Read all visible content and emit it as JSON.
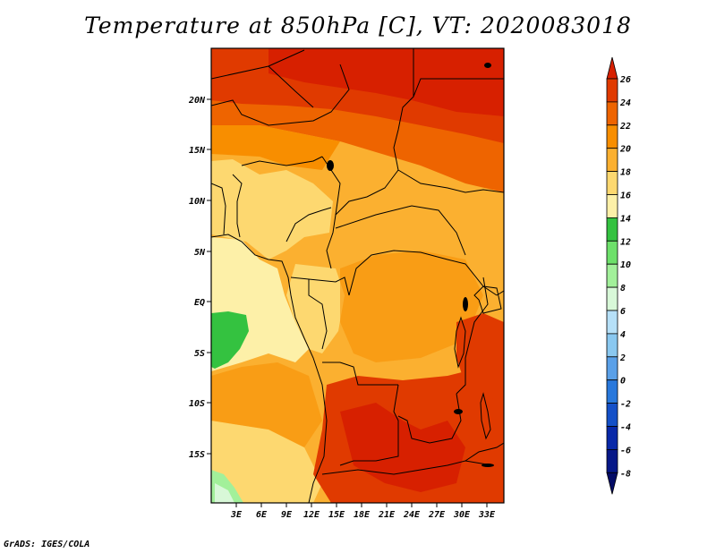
{
  "title": "Temperature at 850hPa [C], VT: 2020083018",
  "credit": "GrADS: IGES/COLA",
  "map": {
    "region": "Central Africa",
    "variable": "Temperature",
    "level": "850hPa",
    "units": "C",
    "valid_time": "2020083018",
    "lon_range": [
      0,
      35
    ],
    "lat_range": [
      -20,
      25
    ],
    "lat_ticks": [
      "20N",
      "15N",
      "10N",
      "5N",
      "EQ",
      "5S",
      "10S",
      "15S"
    ],
    "lon_ticks": [
      "3E",
      "6E",
      "9E",
      "12E",
      "15E",
      "18E",
      "21E",
      "24E",
      "27E",
      "30E",
      "33E"
    ]
  },
  "colorbar": {
    "labels": [
      "26",
      "24",
      "22",
      "20",
      "18",
      "16",
      "14",
      "12",
      "10",
      "8",
      "6",
      "4",
      "2",
      "0",
      "-2",
      "-4",
      "-6",
      "-8"
    ],
    "colors": [
      "#d72000",
      "#e03a00",
      "#ee6400",
      "#f88e00",
      "#fbb030",
      "#fdd870",
      "#fdf0a8",
      "#34c240",
      "#6de06a",
      "#a2f09a",
      "#d8f8d8",
      "#b6e0f8",
      "#8ac8f0",
      "#5aa0e8",
      "#2878dc",
      "#1450c8",
      "#0828a8",
      "#061888",
      "#040c66"
    ]
  }
}
